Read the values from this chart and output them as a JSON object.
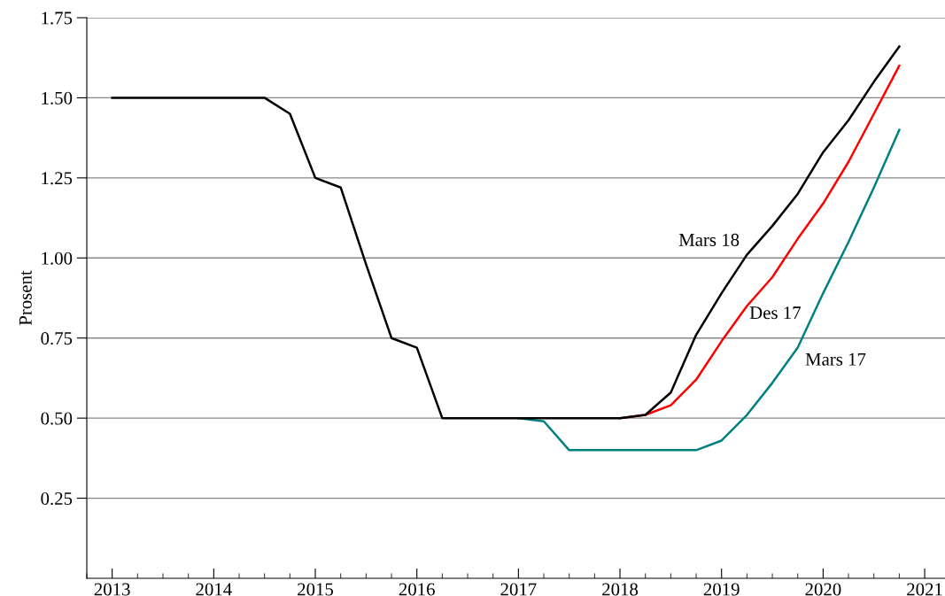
{
  "chart_data": {
    "type": "line",
    "ylabel": "Prosent",
    "xlim": [
      2012.75,
      2021.2
    ],
    "ylim": [
      0,
      1.75
    ],
    "xticks": [
      2013,
      2014,
      2015,
      2016,
      2017,
      2018,
      2019,
      2020,
      2021
    ],
    "yticks": [
      {
        "value": 0.25,
        "label": "0.25"
      },
      {
        "value": 0.5,
        "label": "0.50"
      },
      {
        "value": 0.75,
        "label": "0.75"
      },
      {
        "value": 1.0,
        "label": "1.00"
      },
      {
        "value": 1.25,
        "label": "1.25"
      },
      {
        "value": 1.5,
        "label": "1.50"
      },
      {
        "value": 1.75,
        "label": "1.75"
      }
    ],
    "grid": "y",
    "line_style": "solid",
    "marker": "none",
    "series": [
      {
        "name": "Mars 17",
        "color": "#008080",
        "x": [
          2017.0,
          2017.25,
          2017.5,
          2017.75,
          2018.0,
          2018.25,
          2018.5,
          2018.75,
          2019.0,
          2019.25,
          2019.5,
          2019.75,
          2020.0,
          2020.25,
          2020.5,
          2020.75
        ],
        "values": [
          0.5,
          0.49,
          0.4,
          0.4,
          0.4,
          0.4,
          0.4,
          0.4,
          0.43,
          0.51,
          0.61,
          0.72,
          0.89,
          1.05,
          1.22,
          1.4
        ]
      },
      {
        "name": "Des 17",
        "color": "#ff0000",
        "x": [
          2018.0,
          2018.25,
          2018.5,
          2018.75,
          2019.0,
          2019.25,
          2019.5,
          2019.75,
          2020.0,
          2020.25,
          2020.5,
          2020.75
        ],
        "values": [
          0.5,
          0.51,
          0.54,
          0.62,
          0.74,
          0.85,
          0.94,
          1.06,
          1.17,
          1.3,
          1.45,
          1.6
        ]
      },
      {
        "name": "Mars 18",
        "color": "#000000",
        "x": [
          2013.0,
          2013.25,
          2013.5,
          2013.75,
          2014.0,
          2014.25,
          2014.5,
          2014.75,
          2015.0,
          2015.25,
          2015.5,
          2015.75,
          2016.0,
          2016.25,
          2016.5,
          2016.75,
          2017.0,
          2017.25,
          2017.5,
          2017.75,
          2018.0,
          2018.25,
          2018.5,
          2018.75,
          2019.0,
          2019.25,
          2019.5,
          2019.75,
          2020.0,
          2020.25,
          2020.5,
          2020.75
        ],
        "values": [
          1.5,
          1.5,
          1.5,
          1.5,
          1.5,
          1.5,
          1.5,
          1.45,
          1.25,
          1.22,
          0.98,
          0.75,
          0.72,
          0.5,
          0.5,
          0.5,
          0.5,
          0.5,
          0.5,
          0.5,
          0.5,
          0.51,
          0.58,
          0.76,
          0.89,
          1.01,
          1.1,
          1.2,
          1.33,
          1.43,
          1.55,
          1.66
        ]
      }
    ]
  }
}
